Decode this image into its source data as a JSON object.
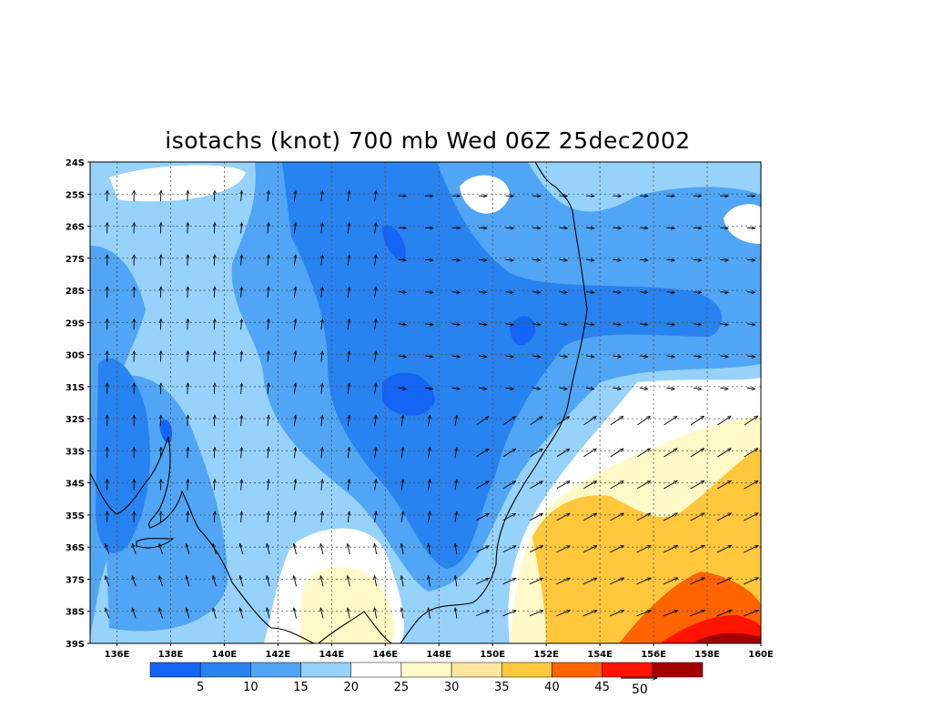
{
  "title": "isotachs (knot) 700 mb Wed 06Z 25dec2002",
  "map": {
    "lat_labels": [
      "24S",
      "25S",
      "26S",
      "27S",
      "28S",
      "29S",
      "30S",
      "31S",
      "32S",
      "33S",
      "34S",
      "35S",
      "36S",
      "37S",
      "38S",
      "39S"
    ],
    "lon_labels": [
      "136E",
      "138E",
      "140E",
      "142E",
      "144E",
      "146E",
      "148E",
      "150E",
      "152E",
      "154E",
      "156E",
      "158E",
      "160E"
    ],
    "lon_range": [
      135,
      160
    ],
    "lat_range": [
      -39,
      -24
    ],
    "grid": true
  },
  "colorbar": {
    "colors": [
      "#1464f5",
      "#2882f0",
      "#50a5f5",
      "#96d2fa",
      "#ffffff",
      "#fffac8",
      "#ffe6a0",
      "#ffc83c",
      "#ff6400",
      "#ff1400",
      "#a50000"
    ],
    "labels": [
      "5",
      "10",
      "15",
      "20",
      "25",
      "30",
      "35",
      "40",
      "45"
    ]
  },
  "vector_ref": {
    "label": "50"
  }
}
